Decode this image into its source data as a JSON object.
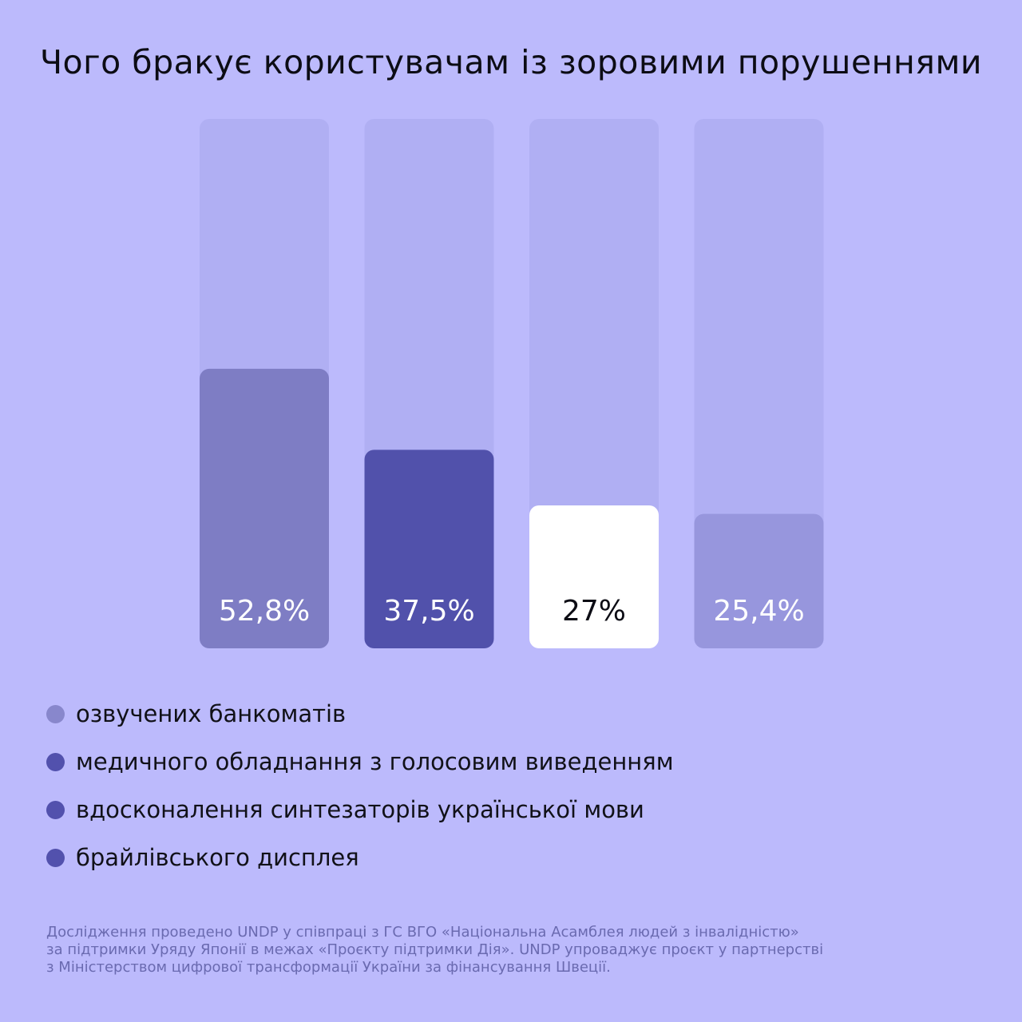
{
  "page": {
    "background": "#bcbafc"
  },
  "chart_data": {
    "type": "bar",
    "title": "Чого бракує користувачам із зоровими порушеннями",
    "xlabel": "",
    "ylabel": "",
    "ylim": [
      0,
      100
    ],
    "unit": "%",
    "categories": [
      "озвучених банкоматів",
      "медичного обладнання з голосовим виведенням",
      "вдосконалення синтезаторів української мови",
      "брайлівського дисплея"
    ],
    "values": [
      52.8,
      37.5,
      27,
      25.4
    ],
    "value_labels": [
      "52,8%",
      "37,5%",
      "27%",
      "25,4%"
    ],
    "bar_colors": [
      "#7e7dc4",
      "#5151ab",
      "#ffffff",
      "#9796dd"
    ],
    "label_colors": [
      "#ffffff",
      "#ffffff",
      "#0c0c14",
      "#ffffff"
    ],
    "track_color": "#b0aff3",
    "grid": false
  },
  "legend": {
    "placement": "bottom-left",
    "items": [
      {
        "label": "озвучених банкоматів",
        "color": "#8887cc"
      },
      {
        "label": "медичного обладнання з голосовим виведенням",
        "color": "#5251ad"
      },
      {
        "label": "вдосконалення синтезаторів української мови",
        "color": "#5251ad"
      },
      {
        "label": "брайлівського дисплея",
        "color": "#5251ad"
      }
    ]
  },
  "footnote": {
    "lines": [
      "Дослідження проведено UNDP у співпраці з ГС ВГО «Національна Асамблея людей з інвалідністю»",
      "за підтримки Уряду Японії в межах «Проєкту підтримки Дія». UNDP упроваджує проєкт у партнерстві",
      "з Міністерством цифрової трансформації України за фінансування Швеції."
    ]
  }
}
